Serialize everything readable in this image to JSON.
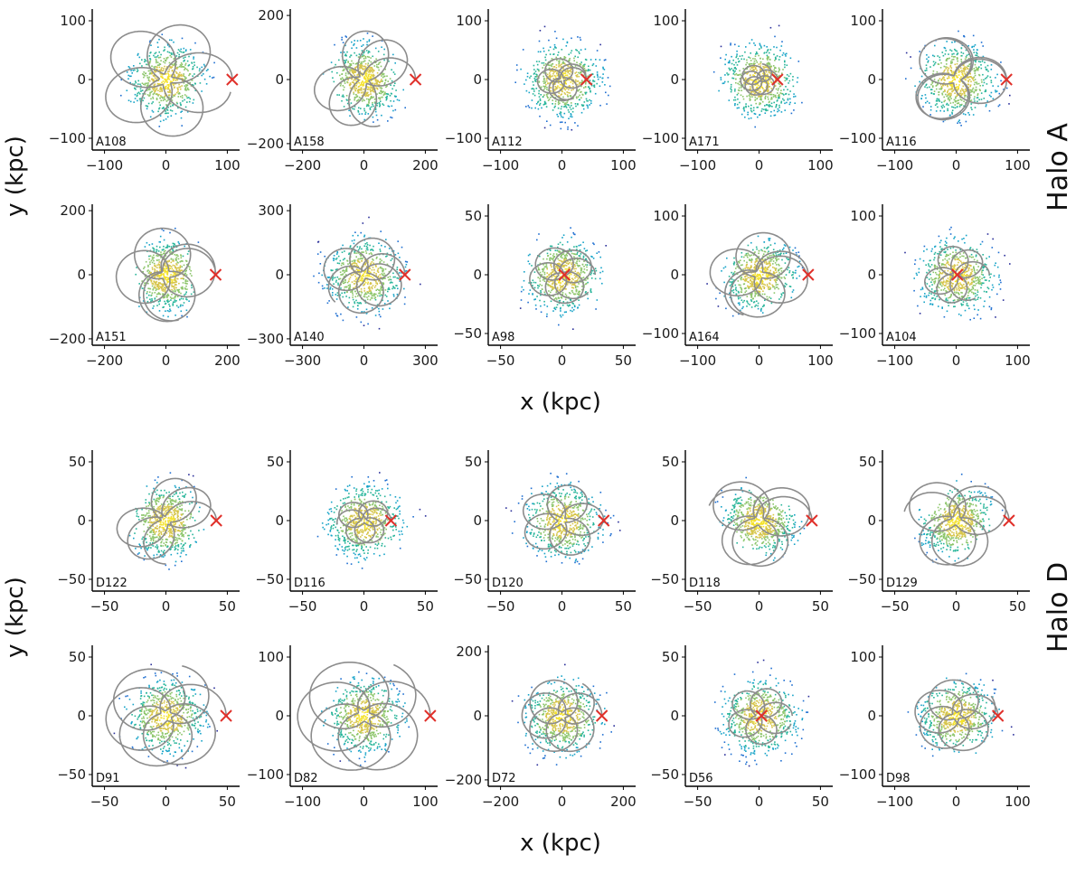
{
  "chart_data": {
    "type": "scatter",
    "description_labels": {
      "x_axis_title": "x (kpc)",
      "y_axis_title": "y (kpc)"
    },
    "groups": [
      {
        "halo_label": "Halo A",
        "rows": [
          [
            {
              "id": "A108",
              "xlim": [
                -120,
                120
              ],
              "ylim": [
                -120,
                120
              ],
              "xticks": [
                -100,
                0,
                100
              ],
              "yticks": [
                -100,
                0,
                100
              ],
              "progenitor_x": 108,
              "progenitor_y": 0
            },
            {
              "id": "A158",
              "xlim": [
                -240,
                240
              ],
              "ylim": [
                -220,
                220
              ],
              "xticks": [
                -200,
                0,
                200
              ],
              "yticks": [
                -200,
                0,
                200
              ],
              "progenitor_x": 168,
              "progenitor_y": 0
            },
            {
              "id": "A112",
              "xlim": [
                -120,
                120
              ],
              "ylim": [
                -120,
                120
              ],
              "xticks": [
                -100,
                0,
                100
              ],
              "yticks": [
                -100,
                0,
                100
              ],
              "progenitor_x": 40,
              "progenitor_y": 0
            },
            {
              "id": "A171",
              "xlim": [
                -120,
                120
              ],
              "ylim": [
                -120,
                120
              ],
              "xticks": [
                -100,
                0,
                100
              ],
              "yticks": [
                -100,
                0,
                100
              ],
              "progenitor_x": 30,
              "progenitor_y": 0
            },
            {
              "id": "A116",
              "xlim": [
                -120,
                120
              ],
              "ylim": [
                -120,
                120
              ],
              "xticks": [
                -100,
                0,
                100
              ],
              "yticks": [
                -100,
                0,
                100
              ],
              "progenitor_x": 82,
              "progenitor_y": 0
            }
          ],
          [
            {
              "id": "A151",
              "xlim": [
                -240,
                240
              ],
              "ylim": [
                -220,
                220
              ],
              "xticks": [
                -200,
                0,
                200
              ],
              "yticks": [
                -200,
                0,
                200
              ],
              "progenitor_x": 162,
              "progenitor_y": 0
            },
            {
              "id": "A140",
              "xlim": [
                -360,
                360
              ],
              "ylim": [
                -330,
                330
              ],
              "xticks": [
                -300,
                0,
                300
              ],
              "yticks": [
                -300,
                0,
                300
              ],
              "progenitor_x": 200,
              "progenitor_y": 0
            },
            {
              "id": "A98",
              "xlim": [
                -60,
                60
              ],
              "ylim": [
                -60,
                60
              ],
              "xticks": [
                -50,
                0,
                50
              ],
              "yticks": [
                -50,
                0,
                50
              ],
              "progenitor_x": 2,
              "progenitor_y": 0
            },
            {
              "id": "A164",
              "xlim": [
                -120,
                120
              ],
              "ylim": [
                -120,
                120
              ],
              "xticks": [
                -100,
                0,
                100
              ],
              "yticks": [
                -100,
                0,
                100
              ],
              "progenitor_x": 80,
              "progenitor_y": 0
            },
            {
              "id": "A104",
              "xlim": [
                -120,
                120
              ],
              "ylim": [
                -120,
                120
              ],
              "xticks": [
                -100,
                0,
                100
              ],
              "yticks": [
                -100,
                0,
                100
              ],
              "progenitor_x": 2,
              "progenitor_y": 0
            }
          ]
        ]
      },
      {
        "halo_label": "Halo D",
        "rows": [
          [
            {
              "id": "D122",
              "xlim": [
                -60,
                60
              ],
              "ylim": [
                -60,
                60
              ],
              "xticks": [
                -50,
                0,
                50
              ],
              "yticks": [
                -50,
                0,
                50
              ],
              "progenitor_x": 41,
              "progenitor_y": 0
            },
            {
              "id": "D116",
              "xlim": [
                -60,
                60
              ],
              "ylim": [
                -60,
                60
              ],
              "xticks": [
                -50,
                0,
                50
              ],
              "yticks": [
                -50,
                0,
                50
              ],
              "progenitor_x": 22,
              "progenitor_y": 0
            },
            {
              "id": "D120",
              "xlim": [
                -60,
                60
              ],
              "ylim": [
                -60,
                60
              ],
              "xticks": [
                -50,
                0,
                50
              ],
              "yticks": [
                -50,
                0,
                50
              ],
              "progenitor_x": 34,
              "progenitor_y": 0
            },
            {
              "id": "D118",
              "xlim": [
                -60,
                60
              ],
              "ylim": [
                -60,
                60
              ],
              "xticks": [
                -50,
                0,
                50
              ],
              "yticks": [
                -50,
                0,
                50
              ],
              "progenitor_x": 43,
              "progenitor_y": 0
            },
            {
              "id": "D129",
              "xlim": [
                -60,
                60
              ],
              "ylim": [
                -60,
                60
              ],
              "xticks": [
                -50,
                0,
                50
              ],
              "yticks": [
                -50,
                0,
                50
              ],
              "progenitor_x": 43,
              "progenitor_y": 0
            }
          ],
          [
            {
              "id": "D91",
              "xlim": [
                -60,
                60
              ],
              "ylim": [
                -60,
                60
              ],
              "xticks": [
                -50,
                0,
                50
              ],
              "yticks": [
                -50,
                0,
                50
              ],
              "progenitor_x": 49,
              "progenitor_y": 0
            },
            {
              "id": "D82",
              "xlim": [
                -120,
                120
              ],
              "ylim": [
                -120,
                120
              ],
              "xticks": [
                -100,
                0,
                100
              ],
              "yticks": [
                -100,
                0,
                100
              ],
              "progenitor_x": 108,
              "progenitor_y": 0
            },
            {
              "id": "D72",
              "xlim": [
                -240,
                240
              ],
              "ylim": [
                -220,
                220
              ],
              "xticks": [
                -200,
                0,
                200
              ],
              "yticks": [
                -200,
                0,
                200
              ],
              "progenitor_x": 130,
              "progenitor_y": 0
            },
            {
              "id": "D56",
              "xlim": [
                -60,
                60
              ],
              "ylim": [
                -60,
                60
              ],
              "xticks": [
                -50,
                0,
                50
              ],
              "yticks": [
                -50,
                0,
                50
              ],
              "progenitor_x": 2,
              "progenitor_y": 0
            },
            {
              "id": "D98",
              "xlim": [
                -120,
                120
              ],
              "ylim": [
                -120,
                120
              ],
              "xticks": [
                -100,
                0,
                100
              ],
              "yticks": [
                -100,
                0,
                100
              ],
              "progenitor_x": 68,
              "progenitor_y": 0
            }
          ]
        ]
      }
    ],
    "colors": {
      "orbit": "#8c8c8c",
      "progenitor_marker": "#e0302a",
      "particle_palette": [
        "#2a2f9a",
        "#1f6fd1",
        "#16a3c8",
        "#27b59a",
        "#8cc56a",
        "#d6c54a",
        "#f4e22a"
      ]
    }
  }
}
